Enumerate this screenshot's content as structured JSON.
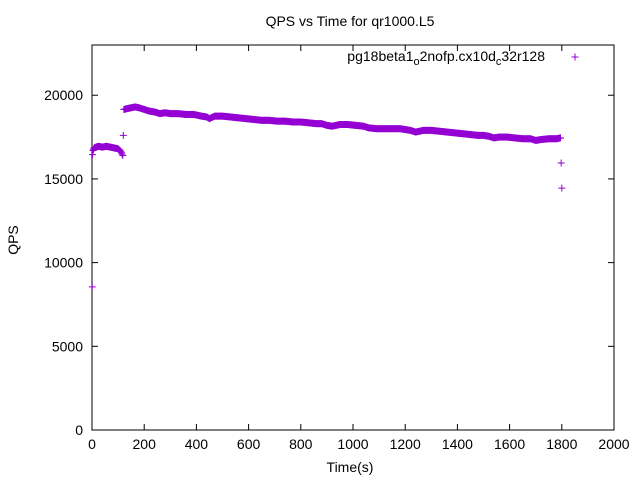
{
  "chart_data": {
    "type": "scatter",
    "title": "QPS vs Time for qr1000.L5",
    "xlabel": "Time(s)",
    "ylabel": "QPS",
    "xlim": [
      0,
      2000
    ],
    "ylim": [
      0,
      23000
    ],
    "xticks": [
      0,
      200,
      400,
      600,
      800,
      1000,
      1200,
      1400,
      1600,
      1800,
      2000
    ],
    "yticks": [
      0,
      5000,
      10000,
      15000,
      20000
    ],
    "grid": false,
    "legend": "top-right",
    "series": [
      {
        "name_parts": [
          {
            "text": "pg18beta1",
            "sub": false
          },
          {
            "text": "o",
            "sub": true
          },
          {
            "text": "2nofp.cx10d",
            "sub": false
          },
          {
            "text": "c",
            "sub": true
          },
          {
            "text": "32r128",
            "sub": false
          }
        ],
        "color": "#9400d3",
        "marker": "plus",
        "points": [
          [
            1,
            8550
          ],
          [
            2,
            16450
          ],
          [
            4,
            16700
          ],
          [
            8,
            16850
          ],
          [
            15,
            16900
          ],
          [
            25,
            16950
          ],
          [
            40,
            16900
          ],
          [
            55,
            16950
          ],
          [
            70,
            16900
          ],
          [
            85,
            16850
          ],
          [
            100,
            16800
          ],
          [
            110,
            16650
          ],
          [
            118,
            16400
          ],
          [
            120,
            17600
          ],
          [
            122,
            19150
          ],
          [
            135,
            19200
          ],
          [
            150,
            19250
          ],
          [
            165,
            19300
          ],
          [
            180,
            19250
          ],
          [
            200,
            19150
          ],
          [
            220,
            19050
          ],
          [
            240,
            19000
          ],
          [
            260,
            18900
          ],
          [
            280,
            18950
          ],
          [
            300,
            18900
          ],
          [
            330,
            18900
          ],
          [
            360,
            18850
          ],
          [
            390,
            18850
          ],
          [
            420,
            18750
          ],
          [
            440,
            18700
          ],
          [
            450,
            18600
          ],
          [
            470,
            18750
          ],
          [
            500,
            18750
          ],
          [
            530,
            18700
          ],
          [
            560,
            18650
          ],
          [
            590,
            18600
          ],
          [
            620,
            18550
          ],
          [
            650,
            18500
          ],
          [
            680,
            18500
          ],
          [
            710,
            18450
          ],
          [
            740,
            18450
          ],
          [
            770,
            18400
          ],
          [
            800,
            18400
          ],
          [
            830,
            18350
          ],
          [
            860,
            18300
          ],
          [
            880,
            18300
          ],
          [
            900,
            18200
          ],
          [
            920,
            18150
          ],
          [
            950,
            18250
          ],
          [
            980,
            18250
          ],
          [
            1010,
            18200
          ],
          [
            1040,
            18150
          ],
          [
            1060,
            18050
          ],
          [
            1090,
            18000
          ],
          [
            1120,
            18000
          ],
          [
            1150,
            18000
          ],
          [
            1180,
            18000
          ],
          [
            1200,
            17950
          ],
          [
            1220,
            17900
          ],
          [
            1240,
            17800
          ],
          [
            1270,
            17900
          ],
          [
            1300,
            17900
          ],
          [
            1330,
            17850
          ],
          [
            1360,
            17800
          ],
          [
            1390,
            17750
          ],
          [
            1420,
            17700
          ],
          [
            1450,
            17650
          ],
          [
            1480,
            17600
          ],
          [
            1500,
            17600
          ],
          [
            1520,
            17550
          ],
          [
            1540,
            17450
          ],
          [
            1560,
            17500
          ],
          [
            1590,
            17500
          ],
          [
            1620,
            17450
          ],
          [
            1650,
            17400
          ],
          [
            1680,
            17400
          ],
          [
            1700,
            17300
          ],
          [
            1720,
            17350
          ],
          [
            1750,
            17400
          ],
          [
            1780,
            17400
          ],
          [
            1795,
            17450
          ],
          [
            1800,
            14450
          ]
        ]
      }
    ]
  }
}
